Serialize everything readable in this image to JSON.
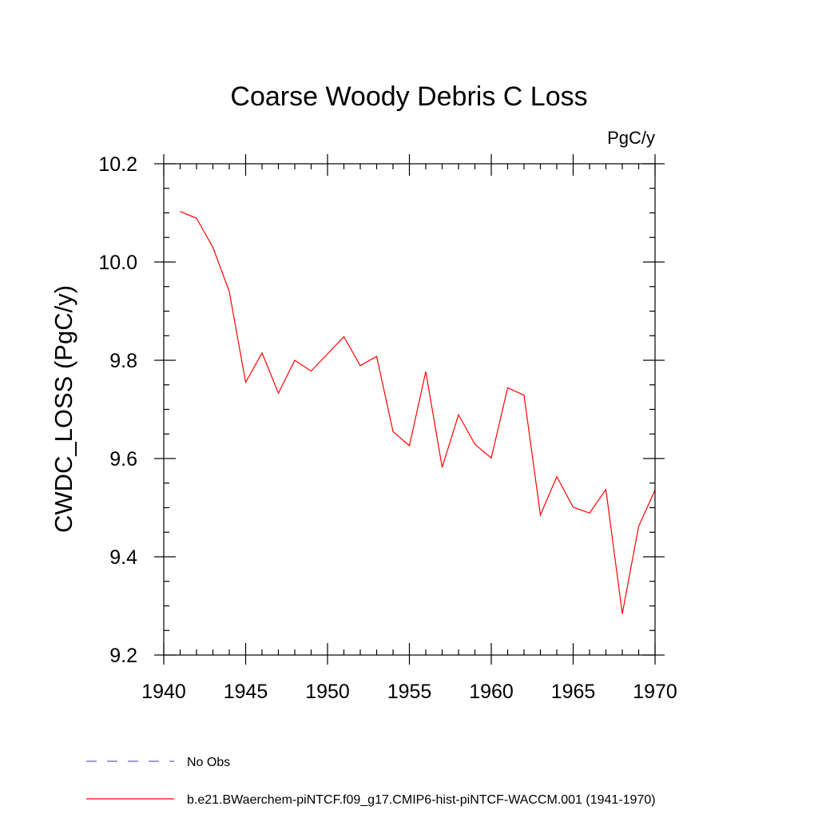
{
  "chart_data": {
    "type": "line",
    "title": "Coarse Woody Debris C Loss",
    "units": "PgC/y",
    "ylabel": "CWDC_LOSS  (PgC/y)",
    "xlabel": "",
    "xlim": [
      1940,
      1970
    ],
    "ylim": [
      9.2,
      10.2
    ],
    "xticks": [
      1940,
      1945,
      1950,
      1955,
      1960,
      1965,
      1970
    ],
    "xtick_labels": [
      "1940",
      "1945",
      "1950",
      "1955",
      "1960",
      "1965",
      "1970"
    ],
    "yticks": [
      9.2,
      9.4,
      9.6,
      9.8,
      10.0,
      10.2
    ],
    "ytick_labels": [
      "9.2",
      "9.4",
      "9.6",
      "9.8",
      "10.0",
      "10.2"
    ],
    "grid": false,
    "legend_position": "bottom",
    "legend": [
      {
        "label": "No Obs",
        "color": "#6a5acd",
        "dash": "dashed"
      },
      {
        "label": "b.e21.BWaerchem-piNTCF.f09_g17.CMIP6-hist-piNTCF-WACCM.001 (1941-1970)",
        "color": "#ff0000",
        "dash": "solid"
      }
    ],
    "series": [
      {
        "name": "b.e21.BWaerchem-piNTCF.f09_g17.CMIP6-hist-piNTCF-WACCM.001 (1941-1970)",
        "color": "#ff0000",
        "x": [
          1941,
          1942,
          1943,
          1944,
          1945,
          1946,
          1947,
          1948,
          1949,
          1950,
          1951,
          1952,
          1953,
          1954,
          1955,
          1956,
          1957,
          1958,
          1959,
          1960,
          1961,
          1962,
          1963,
          1964,
          1965,
          1966,
          1967,
          1968,
          1969,
          1970
        ],
        "y": [
          10.103,
          10.089,
          10.03,
          9.94,
          9.755,
          9.815,
          9.733,
          9.8,
          9.778,
          9.813,
          9.848,
          9.789,
          9.808,
          9.655,
          9.626,
          9.777,
          9.582,
          9.689,
          9.629,
          9.601,
          9.744,
          9.729,
          9.485,
          9.563,
          9.501,
          9.489,
          9.537,
          9.284,
          9.462,
          9.536
        ]
      }
    ]
  }
}
